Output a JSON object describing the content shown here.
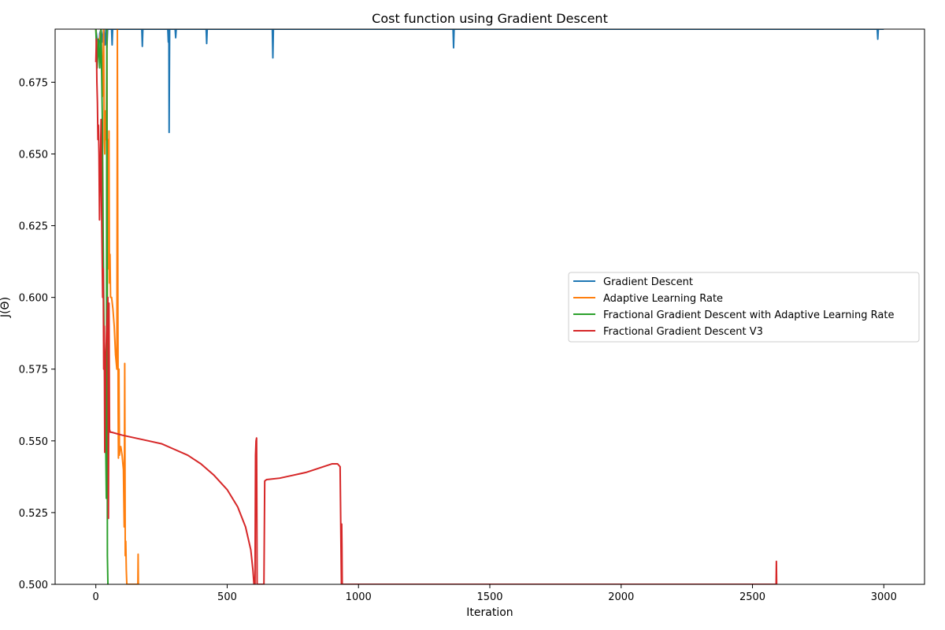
{
  "chart_data": {
    "type": "line",
    "title": "Cost function using Gradient Descent",
    "xlabel": "Iteration",
    "ylabel": "J(Θ)",
    "xlim": [
      -155,
      3155
    ],
    "ylim": [
      0.5,
      0.6935
    ],
    "xticks": [
      0,
      500,
      1000,
      1500,
      2000,
      2500,
      3000
    ],
    "yticks": [
      0.5,
      0.525,
      0.55,
      0.575,
      0.6,
      0.625,
      0.65,
      0.675
    ],
    "ytick_labels": [
      "0.500",
      "0.525",
      "0.550",
      "0.575",
      "0.600",
      "0.625",
      "0.650",
      "0.675"
    ],
    "grid": false,
    "legend_position": "center-right",
    "series": [
      {
        "name": "Gradient Descent",
        "color": "#1f77b4",
        "points": [
          [
            0,
            0.6935
          ],
          [
            5,
            0.69
          ],
          [
            10,
            0.685
          ],
          [
            15,
            0.692
          ],
          [
            20,
            0.6935
          ],
          [
            25,
            0.689
          ],
          [
            30,
            0.6935
          ],
          [
            35,
            0.688
          ],
          [
            38,
            0.6935
          ],
          [
            42,
            0.687
          ],
          [
            45,
            0.6935
          ],
          [
            50,
            0.6935
          ],
          [
            55,
            0.6935
          ],
          [
            60,
            0.6935
          ],
          [
            62,
            0.688
          ],
          [
            64,
            0.6935
          ],
          [
            175,
            0.6935
          ],
          [
            177,
            0.6875
          ],
          [
            179,
            0.6935
          ],
          [
            274,
            0.6935
          ],
          [
            276,
            0.689
          ],
          [
            278,
            0.6935
          ],
          [
            279,
            0.6575
          ],
          [
            281,
            0.6935
          ],
          [
            302,
            0.6935
          ],
          [
            304,
            0.6905
          ],
          [
            306,
            0.6935
          ],
          [
            420,
            0.6935
          ],
          [
            422,
            0.6885
          ],
          [
            424,
            0.6935
          ],
          [
            672,
            0.6935
          ],
          [
            674,
            0.6835
          ],
          [
            676,
            0.6935
          ],
          [
            1360,
            0.6935
          ],
          [
            1362,
            0.687
          ],
          [
            1364,
            0.6935
          ],
          [
            2975,
            0.6935
          ],
          [
            2977,
            0.69
          ],
          [
            2979,
            0.6935
          ],
          [
            3000,
            0.6935
          ]
        ]
      },
      {
        "name": "Adaptive Learning Rate",
        "color": "#ff7f0e",
        "points": [
          [
            0,
            0.6935
          ],
          [
            5,
            0.685
          ],
          [
            10,
            0.69
          ],
          [
            15,
            0.69
          ],
          [
            20,
            0.6935
          ],
          [
            25,
            0.67
          ],
          [
            30,
            0.6935
          ],
          [
            32,
            0.655
          ],
          [
            34,
            0.65
          ],
          [
            36,
            0.665
          ],
          [
            38,
            0.655
          ],
          [
            40,
            0.66
          ],
          [
            42,
            0.6935
          ],
          [
            44,
            0.6
          ],
          [
            46,
            0.655
          ],
          [
            48,
            0.61
          ],
          [
            50,
            0.658
          ],
          [
            52,
            0.605
          ],
          [
            54,
            0.615
          ],
          [
            56,
            0.6
          ],
          [
            60,
            0.6
          ],
          [
            65,
            0.596
          ],
          [
            70,
            0.59
          ],
          [
            75,
            0.58
          ],
          [
            80,
            0.575
          ],
          [
            82,
            0.6935
          ],
          [
            84,
            0.598
          ],
          [
            85,
            0.56
          ],
          [
            86,
            0.544
          ],
          [
            88,
            0.575
          ],
          [
            90,
            0.545
          ],
          [
            92,
            0.548
          ],
          [
            95,
            0.548
          ],
          [
            100,
            0.545
          ],
          [
            105,
            0.54
          ],
          [
            108,
            0.52
          ],
          [
            110,
            0.577
          ],
          [
            112,
            0.51
          ],
          [
            114,
            0.515
          ],
          [
            116,
            0.505
          ],
          [
            118,
            0.5
          ],
          [
            160,
            0.5
          ],
          [
            161,
            0.5105
          ],
          [
            162,
            0.5
          ]
        ]
      },
      {
        "name": "Fractional Gradient Descent with Adaptive Learning Rate",
        "color": "#2ca02c",
        "points": [
          [
            0,
            0.6935
          ],
          [
            5,
            0.68
          ],
          [
            10,
            0.69
          ],
          [
            15,
            0.68
          ],
          [
            20,
            0.6935
          ],
          [
            25,
            0.66
          ],
          [
            28,
            0.62
          ],
          [
            30,
            0.6
          ],
          [
            32,
            0.58
          ],
          [
            34,
            0.57
          ],
          [
            36,
            0.55
          ],
          [
            38,
            0.546
          ],
          [
            40,
            0.53
          ],
          [
            42,
            0.6935
          ],
          [
            44,
            0.51
          ],
          [
            46,
            0.5
          ]
        ]
      },
      {
        "name": "Fractional Gradient Descent V3",
        "color": "#d62728",
        "points": [
          [
            0,
            0.682
          ],
          [
            2,
            0.69
          ],
          [
            4,
            0.675
          ],
          [
            6,
            0.668
          ],
          [
            8,
            0.655
          ],
          [
            10,
            0.66
          ],
          [
            12,
            0.65
          ],
          [
            14,
            0.627
          ],
          [
            16,
            0.64
          ],
          [
            18,
            0.65
          ],
          [
            20,
            0.662
          ],
          [
            22,
            0.63
          ],
          [
            24,
            0.615
          ],
          [
            26,
            0.6
          ],
          [
            28,
            0.61
          ],
          [
            30,
            0.575
          ],
          [
            32,
            0.59
          ],
          [
            34,
            0.546
          ],
          [
            36,
            0.565
          ],
          [
            38,
            0.58
          ],
          [
            40,
            0.585
          ],
          [
            42,
            0.59
          ],
          [
            44,
            0.595
          ],
          [
            46,
            0.6
          ],
          [
            48,
            0.523
          ],
          [
            50,
            0.598
          ],
          [
            52,
            0.554
          ],
          [
            55,
            0.553
          ],
          [
            60,
            0.553
          ],
          [
            100,
            0.552
          ],
          [
            150,
            0.551
          ],
          [
            200,
            0.55
          ],
          [
            250,
            0.549
          ],
          [
            300,
            0.547
          ],
          [
            350,
            0.545
          ],
          [
            400,
            0.542
          ],
          [
            450,
            0.538
          ],
          [
            500,
            0.533
          ],
          [
            540,
            0.527
          ],
          [
            570,
            0.52
          ],
          [
            590,
            0.512
          ],
          [
            598,
            0.505
          ],
          [
            602,
            0.5
          ],
          [
            606,
            0.5
          ],
          [
            608,
            0.545
          ],
          [
            610,
            0.55
          ],
          [
            612,
            0.551
          ],
          [
            614,
            0.5
          ],
          [
            640,
            0.5
          ],
          [
            643,
            0.536
          ],
          [
            650,
            0.5365
          ],
          [
            700,
            0.537
          ],
          [
            750,
            0.538
          ],
          [
            800,
            0.539
          ],
          [
            850,
            0.5405
          ],
          [
            900,
            0.542
          ],
          [
            920,
            0.542
          ],
          [
            930,
            0.541
          ],
          [
            935,
            0.5
          ],
          [
            936,
            0.521
          ],
          [
            937,
            0.513
          ],
          [
            938,
            0.5
          ],
          [
            2590,
            0.5
          ],
          [
            2591,
            0.508
          ],
          [
            2592,
            0.5
          ]
        ]
      }
    ]
  }
}
